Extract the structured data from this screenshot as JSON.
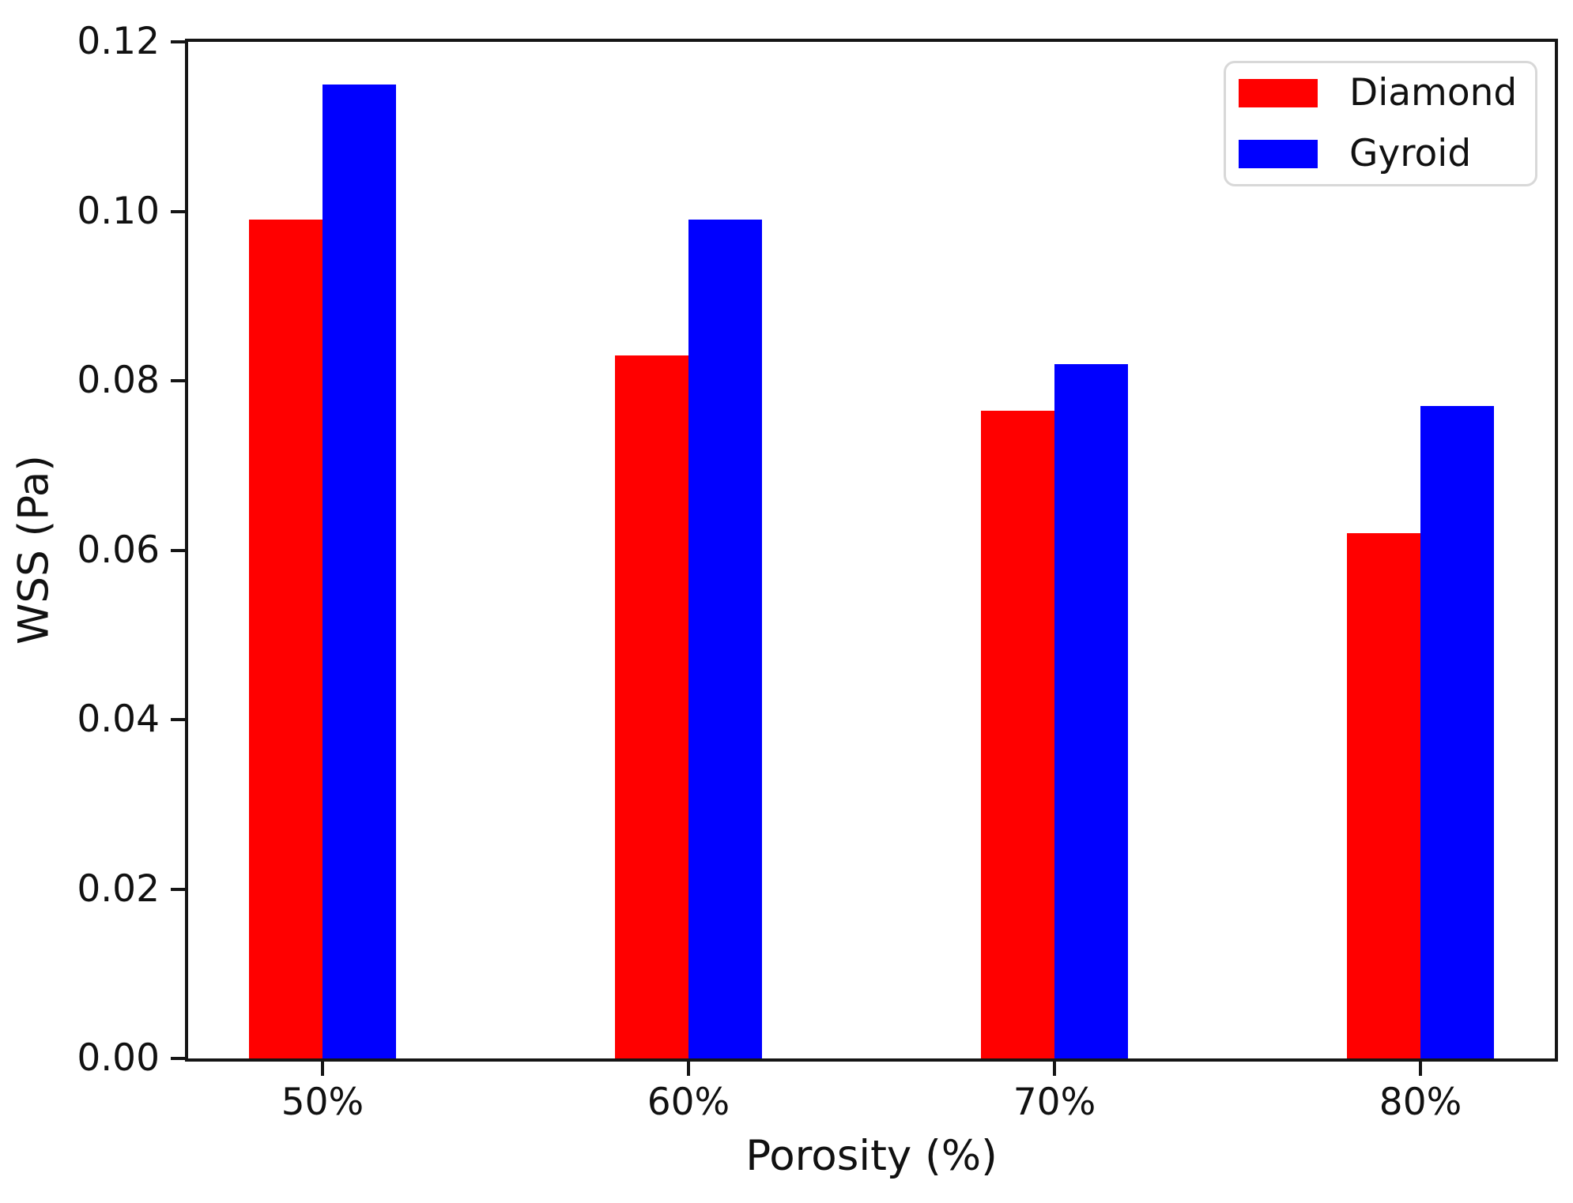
{
  "chart_data": {
    "type": "bar",
    "title": "",
    "xlabel": "Porosity (%)",
    "ylabel": "WSS (Pa)",
    "categories": [
      "50%",
      "60%",
      "70%",
      "80%"
    ],
    "series": [
      {
        "name": "Diamond",
        "color": "#ff0000",
        "values": [
          0.099,
          0.083,
          0.0765,
          0.062
        ]
      },
      {
        "name": "Gyroid",
        "color": "#0000ff",
        "values": [
          0.115,
          0.099,
          0.082,
          0.077
        ]
      }
    ],
    "ylim": [
      0,
      0.12
    ],
    "yticks": [
      0,
      0.02,
      0.04,
      0.06,
      0.08,
      0.1,
      0.12
    ],
    "ytick_labels": [
      "0.00",
      "0.02",
      "0.04",
      "0.06",
      "0.08",
      "0.10",
      "0.12"
    ],
    "grid": false,
    "legend": {
      "position": "upper-right",
      "entries": [
        "Diamond",
        "Gyroid"
      ]
    }
  }
}
